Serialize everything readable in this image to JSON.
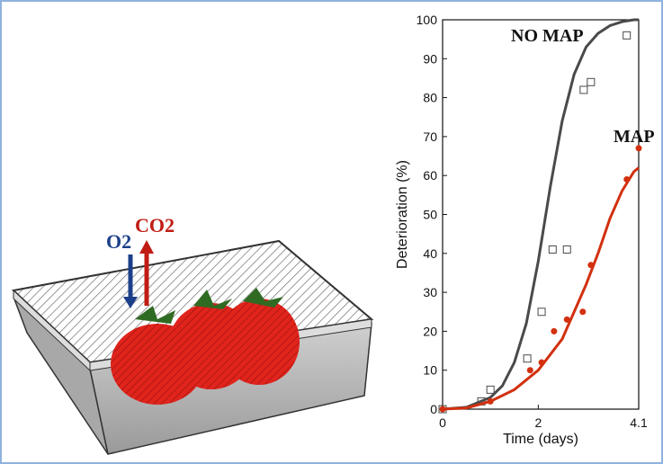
{
  "illustration": {
    "o2_label": "O2",
    "co2_label": "CO2"
  },
  "chart_data": {
    "type": "line",
    "xlabel": "Time (days)",
    "ylabel": "Deterioration (%)",
    "xlim": [
      0,
      4.1
    ],
    "ylim": [
      0,
      100
    ],
    "xticks": [
      0,
      2,
      4.1
    ],
    "yticks": [
      0,
      10,
      20,
      30,
      40,
      50,
      60,
      70,
      80,
      90,
      100
    ],
    "series": [
      {
        "name": "NO MAP",
        "color": "#4a4a4a",
        "marker": "square",
        "x": [
          0,
          0.81,
          1.0,
          1.77,
          2.07,
          2.3,
          2.6,
          2.95,
          3.1,
          3.85
        ],
        "values": [
          0,
          2,
          5,
          13,
          25,
          41,
          41,
          82,
          84,
          96
        ],
        "fit": {
          "x": [
            0,
            0.5,
            1,
            1.25,
            1.5,
            1.75,
            2,
            2.25,
            2.5,
            2.75,
            3,
            3.25,
            3.5,
            3.75,
            4,
            4.1
          ],
          "values": [
            0,
            0.5,
            3,
            6,
            12,
            22,
            38,
            57,
            74,
            86,
            93,
            96.5,
            98.5,
            99.5,
            100,
            100
          ]
        }
      },
      {
        "name": "MAP",
        "color": "#d2300f",
        "marker": "circle",
        "x": [
          0,
          1.0,
          1.83,
          2.07,
          2.33,
          2.6,
          2.93,
          3.1,
          3.85,
          4.1
        ],
        "values": [
          0,
          2,
          10,
          12,
          20,
          23,
          25,
          37,
          59,
          67
        ],
        "fit": {
          "x": [
            0,
            0.5,
            1,
            1.5,
            2,
            2.5,
            3,
            3.25,
            3.5,
            3.75,
            4,
            4.1
          ],
          "values": [
            0,
            0.3,
            2,
            5,
            10,
            18,
            32,
            40,
            49,
            56,
            61,
            62
          ]
        }
      }
    ]
  }
}
